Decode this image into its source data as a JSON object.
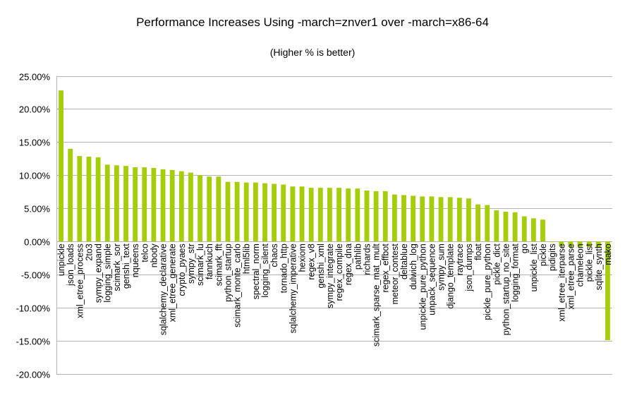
{
  "chart_data": {
    "type": "bar",
    "title": "Performance Increases Using -march=znver1 over -march=x86-64",
    "subtitle": "(Higher % is better)",
    "ylim": [
      -20,
      25
    ],
    "yticks": [
      25,
      20,
      15,
      10,
      5,
      0,
      -5,
      -10,
      -15,
      -20
    ],
    "ytick_labels": [
      "25.00%",
      "20.00%",
      "15.00%",
      "10.00%",
      "5.00%",
      "0.00%",
      "-5.00%",
      "-10.00%",
      "-15.00%",
      "-20.00%"
    ],
    "grid": true,
    "bar_color": "#a5cd0a",
    "categories": [
      "unpickle",
      "json_loads",
      "xml_etree_process",
      "2to3",
      "sympy_expand",
      "logging_simple",
      "scimark_sor",
      "genshi_text",
      "nqueens",
      "telco",
      "nbody",
      "sqlalchemy_declarative",
      "xml_etree_generate",
      "crypto_pyaes",
      "sympy_str",
      "scimark_lu",
      "fannkuch",
      "scimark_fft",
      "python_startup",
      "scimark_monte_carlo",
      "html5lib",
      "spectral_norm",
      "logging_silent",
      "chaos",
      "tornado_http",
      "sqlalchemy_imperative",
      "hexiom",
      "regex_v8",
      "genshi_xml",
      "sympy_integrate",
      "regex_compile",
      "regex_dna",
      "pathlib",
      "richards",
      "scimark_sparse_mat_mult",
      "regex_effbot",
      "meteor_contest",
      "deltablue",
      "dulwich_log",
      "unpickle_pure_python",
      "unpack_sequence",
      "sympy_sum",
      "django_template",
      "raytrace",
      "json_dumps",
      "float",
      "pickle_pure_python",
      "pickle_dict",
      "python_startup_no_site",
      "logging_format",
      "go",
      "unpickle_list",
      "pickle",
      "pidigits",
      "xml_etree_iterparse",
      "xml_etree_parse",
      "chameleon",
      "pickle_list",
      "sqlite_synth",
      "mako"
    ],
    "values": [
      22.8,
      14.0,
      12.9,
      12.8,
      12.7,
      11.6,
      11.5,
      11.4,
      11.2,
      11.2,
      11.1,
      10.9,
      10.8,
      10.6,
      10.4,
      10.0,
      9.8,
      9.8,
      9.0,
      9.0,
      8.9,
      8.9,
      8.8,
      8.7,
      8.6,
      8.3,
      8.3,
      8.1,
      8.1,
      8.1,
      8.1,
      8.0,
      8.0,
      7.7,
      7.6,
      7.6,
      7.1,
      7.0,
      6.9,
      6.8,
      6.8,
      6.7,
      6.7,
      6.6,
      6.5,
      5.6,
      5.5,
      4.7,
      4.5,
      4.4,
      3.8,
      3.5,
      3.3,
      -0.1,
      -0.7,
      -0.8,
      -0.8,
      -0.8,
      -0.9,
      -14.9
    ]
  }
}
